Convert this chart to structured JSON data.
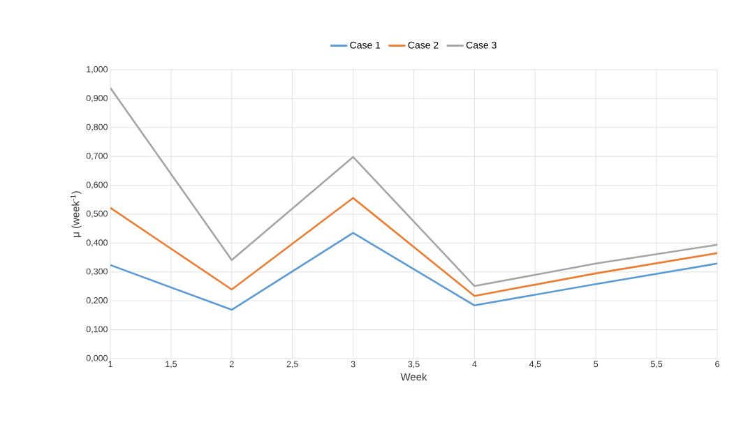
{
  "chart_data": {
    "type": "line",
    "xlabel": "Week",
    "ylabel": "μ (week$^{-1}$)",
    "xlim": [
      1,
      6
    ],
    "ylim": [
      0,
      1
    ],
    "xticks": [
      1,
      {
        "value": 1.5,
        "label": "1,5"
      },
      2,
      {
        "value": 2.5,
        "label": "2,5"
      },
      3,
      {
        "value": 3.5,
        "label": "3,5"
      },
      4,
      {
        "value": 4.5,
        "label": "4,5"
      },
      5,
      {
        "value": 5.5,
        "label": "5,5"
      },
      6
    ],
    "yticks": [
      {
        "value": 0,
        "label": "0,000"
      },
      {
        "value": 0.1,
        "label": "0,100"
      },
      {
        "value": 0.2,
        "label": "0,200"
      },
      {
        "value": 0.3,
        "label": "0,300"
      },
      {
        "value": 0.4,
        "label": "0,400"
      },
      {
        "value": 0.5,
        "label": "0,500"
      },
      {
        "value": 0.6,
        "label": "0,600"
      },
      {
        "value": 0.7,
        "label": "0,700"
      },
      {
        "value": 0.8,
        "label": "0,800"
      },
      {
        "value": 0.9,
        "label": "0,900"
      },
      {
        "value": 1,
        "label": "1,000"
      }
    ],
    "grid": true,
    "legend": "top",
    "marker": "none",
    "line_style": "solid",
    "x": [
      1,
      2,
      3,
      4,
      5,
      6
    ],
    "series": [
      {
        "name": "Case 1",
        "color": "#5b9bd5",
        "values": [
          0.324,
          0.169,
          0.435,
          0.184,
          0.258,
          0.329
        ]
      },
      {
        "name": "Case 2",
        "color": "#ed7d31",
        "values": [
          0.522,
          0.239,
          0.556,
          0.217,
          0.295,
          0.365
        ]
      },
      {
        "name": "Case 3",
        "color": "#a5a5a5",
        "values": [
          0.937,
          0.341,
          0.698,
          0.251,
          0.329,
          0.394
        ]
      }
    ]
  }
}
